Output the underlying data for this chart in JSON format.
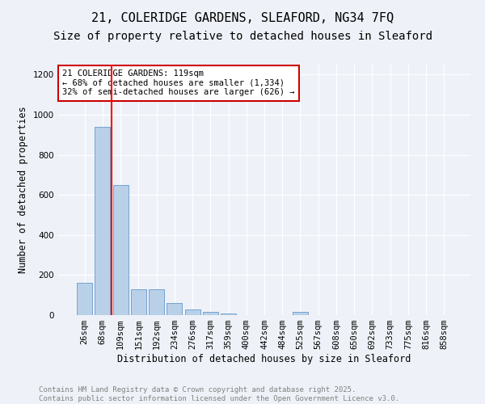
{
  "title1": "21, COLERIDGE GARDENS, SLEAFORD, NG34 7FQ",
  "title2": "Size of property relative to detached houses in Sleaford",
  "xlabel": "Distribution of detached houses by size in Sleaford",
  "ylabel": "Number of detached properties",
  "categories": [
    "26sqm",
    "68sqm",
    "109sqm",
    "151sqm",
    "192sqm",
    "234sqm",
    "276sqm",
    "317sqm",
    "359sqm",
    "400sqm",
    "442sqm",
    "484sqm",
    "525sqm",
    "567sqm",
    "608sqm",
    "650sqm",
    "692sqm",
    "733sqm",
    "775sqm",
    "816sqm",
    "858sqm"
  ],
  "values": [
    160,
    940,
    650,
    130,
    130,
    60,
    30,
    15,
    10,
    0,
    0,
    0,
    15,
    0,
    0,
    0,
    0,
    0,
    0,
    0,
    0
  ],
  "bar_color": "#b8d0e8",
  "bar_edge_color": "#6699cc",
  "red_line_x": 1.5,
  "annotation_text": "21 COLERIDGE GARDENS: 119sqm\n← 68% of detached houses are smaller (1,334)\n32% of semi-detached houses are larger (626) →",
  "annotation_box_color": "#ffffff",
  "annotation_box_edge_color": "#cc0000",
  "ylim": [
    0,
    1250
  ],
  "yticks": [
    0,
    200,
    400,
    600,
    800,
    1000,
    1200
  ],
  "footer1": "Contains HM Land Registry data © Crown copyright and database right 2025.",
  "footer2": "Contains public sector information licensed under the Open Government Licence v3.0.",
  "bg_color": "#eef2f8",
  "plot_bg_color": "#eef2f8",
  "title1_fontsize": 11,
  "title2_fontsize": 10,
  "axis_label_fontsize": 8.5,
  "tick_fontsize": 7.5,
  "annotation_fontsize": 7.5,
  "footer_fontsize": 6.5
}
